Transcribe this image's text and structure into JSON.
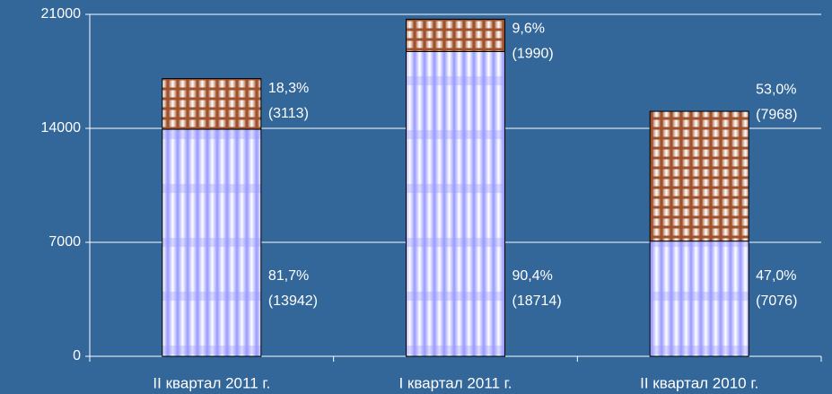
{
  "chart_data": {
    "type": "stacked_bar",
    "categories": [
      "II квартал 2011 г.",
      "I квартал 2011 г.",
      "II квартал 2010 г."
    ],
    "series": [
      {
        "color": "#9999ff",
        "values": [
          13942,
          18714,
          7076
        ],
        "value_labels": [
          "(13942)",
          "(18714)",
          "(7076)"
        ],
        "percents": [
          81.7,
          90.4,
          47.0
        ],
        "percent_labels": [
          "81,7%",
          "90,4%",
          "47,0%"
        ]
      },
      {
        "color": "#a0522d",
        "values": [
          3113,
          1990,
          7968
        ],
        "value_labels": [
          "(3113)",
          "(1990)",
          "(7968)"
        ],
        "percents": [
          18.3,
          9.6,
          53.0
        ],
        "percent_labels": [
          "18,3%",
          "9,6%",
          "53,0%"
        ]
      }
    ],
    "ylim": [
      0,
      21000
    ],
    "yticks": [
      0,
      7000,
      14000,
      21000
    ],
    "grid": true
  }
}
